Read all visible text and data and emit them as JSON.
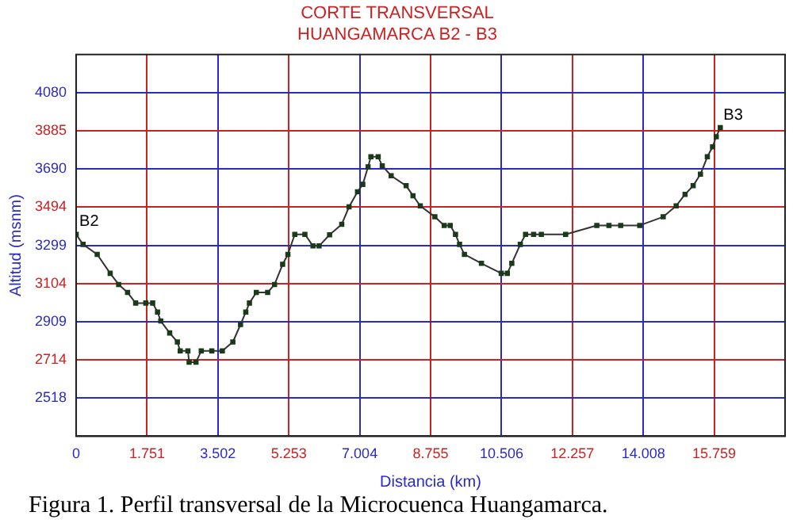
{
  "chart_data": {
    "type": "line",
    "title": "CORTE TRANSVERSAL",
    "subtitle": "HUANGAMARCA B2 - B3",
    "xlabel": "Distancia (km)",
    "ylabel": "Altitud (msnm)",
    "x": [
      0,
      0.17,
      0.52,
      0.84,
      1.05,
      1.27,
      1.47,
      1.72,
      1.89,
      2.01,
      2.09,
      2.31,
      2.5,
      2.57,
      2.76,
      2.79,
      2.96,
      3.09,
      3.35,
      3.61,
      3.87,
      4.06,
      4.19,
      4.28,
      4.45,
      4.73,
      4.9,
      5.1,
      5.23,
      5.4,
      5.65,
      5.85,
      6.0,
      6.26,
      6.56,
      6.74,
      6.95,
      7.08,
      7.21,
      7.28,
      7.46,
      7.56,
      7.78,
      8.15,
      8.32,
      8.5,
      8.86,
      9.09,
      9.24,
      9.37,
      9.47,
      9.59,
      10.01,
      10.5,
      10.65,
      10.76,
      10.97,
      11.1,
      11.3,
      11.49,
      12.09,
      12.86,
      13.16,
      13.45,
      13.92,
      14.5,
      14.82,
      15.04,
      15.24,
      15.42,
      15.59,
      15.72,
      15.81,
      15.91
    ],
    "series": [
      {
        "color": "#333333",
        "values": [
          3355,
          3304,
          3253,
          3156,
          3099,
          3058,
          3004,
          3004,
          3004,
          2958,
          2912,
          2851,
          2805,
          2759,
          2759,
          2702,
          2702,
          2759,
          2759,
          2759,
          2805,
          2894,
          2958,
          3004,
          3058,
          3058,
          3099,
          3202,
          3253,
          3355,
          3355,
          3296,
          3296,
          3353,
          3407,
          3496,
          3573,
          3611,
          3701,
          3752,
          3752,
          3706,
          3655,
          3604,
          3553,
          3501,
          3445,
          3401,
          3401,
          3355,
          3304,
          3253,
          3207,
          3156,
          3156,
          3207,
          3304,
          3355,
          3355,
          3355,
          3355,
          3401,
          3401,
          3401,
          3401,
          3445,
          3501,
          3560,
          3604,
          3663,
          3752,
          3803,
          3855,
          3901
        ]
      }
    ],
    "xlim": [
      0,
      17.51
    ],
    "xticks": [
      0,
      1.751,
      3.502,
      5.253,
      7.004,
      8.755,
      10.506,
      12.257,
      14.008,
      15.759
    ],
    "ylim": [
      2323,
      4275
    ],
    "yticks": [
      2518,
      2714,
      2909,
      3104,
      3299,
      3494,
      3690,
      3885,
      4080
    ],
    "annotations": [
      {
        "text": "B2",
        "x": 0,
        "y": 3355
      },
      {
        "text": "B3",
        "x": 15.91,
        "y": 3901
      },
      "Figura 1. Perfil transversal de la Microcuenca Huangamarca."
    ],
    "grid": true,
    "legend": false,
    "marker": "square",
    "line_style": "solid"
  }
}
